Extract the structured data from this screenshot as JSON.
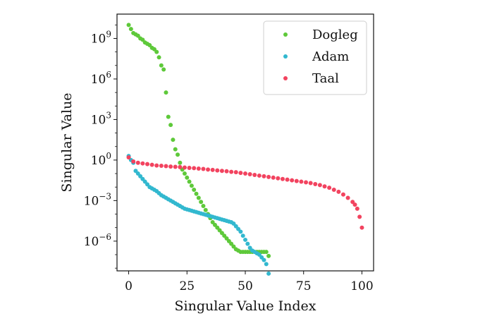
{
  "chart_data": {
    "type": "scatter",
    "xlabel": "Singular Value Index",
    "ylabel": "Singular Value",
    "xlim": [
      -5,
      105
    ],
    "ylim_log10": [
      -8.2,
      10.8
    ],
    "y_scale": "log",
    "x_ticks": [
      0,
      25,
      50,
      75,
      100
    ],
    "x_tick_labels": [
      "0",
      "25",
      "50",
      "75",
      "100"
    ],
    "y_ticks": [
      {
        "base": "10",
        "exp": "9",
        "value_log10": 9
      },
      {
        "base": "10",
        "exp": "6",
        "value_log10": 6
      },
      {
        "base": "10",
        "exp": "3",
        "value_log10": 3
      },
      {
        "base": "10",
        "exp": "0",
        "value_log10": 0
      },
      {
        "base": "10",
        "exp": "−3",
        "value_log10": -3
      },
      {
        "base": "10",
        "exp": "−6",
        "value_log10": -6
      }
    ],
    "legend_position": "top-right",
    "series": [
      {
        "name": "Dogleg",
        "color": "#5ec93a",
        "x": [
          0,
          1,
          2,
          3,
          4,
          5,
          6,
          7,
          8,
          9,
          10,
          11,
          12,
          13,
          14,
          15,
          16,
          17,
          18,
          19,
          20,
          21,
          22,
          23,
          24,
          25,
          26,
          27,
          28,
          29,
          30,
          31,
          32,
          33,
          34,
          35,
          36,
          37,
          38,
          39,
          40,
          41,
          42,
          43,
          44,
          45,
          46,
          47,
          48,
          49,
          50,
          51,
          52,
          53,
          54,
          55,
          56,
          57,
          58,
          59,
          60
        ],
        "log10_y": [
          10.0,
          9.7,
          9.4,
          9.3,
          9.2,
          9.0,
          8.9,
          8.7,
          8.6,
          8.5,
          8.3,
          8.2,
          8.0,
          7.6,
          7.0,
          6.7,
          5.0,
          3.2,
          2.6,
          1.5,
          0.8,
          0.4,
          -0.2,
          -0.7,
          -1.0,
          -1.3,
          -1.6,
          -1.9,
          -2.2,
          -2.5,
          -2.8,
          -3.1,
          -3.4,
          -3.7,
          -4.0,
          -4.3,
          -4.6,
          -4.8,
          -5.0,
          -5.2,
          -5.4,
          -5.6,
          -5.8,
          -6.0,
          -6.2,
          -6.4,
          -6.6,
          -6.7,
          -6.8,
          -6.8,
          -6.8,
          -6.8,
          -6.8,
          -6.8,
          -6.8,
          -6.8,
          -6.8,
          -6.8,
          -6.8,
          -6.8,
          -7.1
        ]
      },
      {
        "name": "Adam",
        "color": "#32b8cf",
        "x": [
          0,
          1,
          2,
          3,
          4,
          5,
          6,
          7,
          8,
          9,
          10,
          11,
          12,
          13,
          14,
          15,
          16,
          17,
          18,
          19,
          20,
          21,
          22,
          23,
          24,
          25,
          26,
          27,
          28,
          29,
          30,
          31,
          32,
          33,
          34,
          35,
          36,
          37,
          38,
          39,
          40,
          41,
          42,
          43,
          44,
          45,
          46,
          47,
          48,
          49,
          50,
          51,
          52,
          53,
          54,
          55,
          56,
          57,
          58,
          59,
          60
        ],
        "log10_y": [
          0.3,
          0.0,
          -0.2,
          -0.8,
          -1.0,
          -1.2,
          -1.4,
          -1.6,
          -1.8,
          -2.0,
          -2.1,
          -2.2,
          -2.3,
          -2.45,
          -2.6,
          -2.7,
          -2.8,
          -2.9,
          -3.0,
          -3.1,
          -3.2,
          -3.3,
          -3.4,
          -3.5,
          -3.6,
          -3.65,
          -3.7,
          -3.75,
          -3.8,
          -3.85,
          -3.9,
          -3.95,
          -4.0,
          -4.05,
          -4.1,
          -4.15,
          -4.2,
          -4.25,
          -4.3,
          -4.35,
          -4.4,
          -4.45,
          -4.5,
          -4.55,
          -4.6,
          -4.7,
          -4.9,
          -5.1,
          -5.3,
          -5.6,
          -5.9,
          -6.2,
          -6.5,
          -6.7,
          -6.8,
          -6.9,
          -7.0,
          -7.2,
          -7.4,
          -7.7,
          -8.4
        ]
      },
      {
        "name": "Taal",
        "color": "#f2435f",
        "x": [
          0,
          2,
          4,
          6,
          8,
          10,
          12,
          14,
          16,
          18,
          20,
          22,
          24,
          26,
          28,
          30,
          32,
          34,
          36,
          38,
          40,
          42,
          44,
          46,
          48,
          50,
          52,
          54,
          56,
          58,
          60,
          62,
          64,
          66,
          68,
          70,
          72,
          74,
          76,
          78,
          80,
          82,
          84,
          86,
          88,
          90,
          92,
          94,
          96,
          97,
          98,
          99,
          100
        ],
        "log10_y": [
          0.2,
          -0.1,
          -0.2,
          -0.25,
          -0.3,
          -0.35,
          -0.4,
          -0.42,
          -0.45,
          -0.48,
          -0.5,
          -0.52,
          -0.55,
          -0.58,
          -0.6,
          -0.63,
          -0.66,
          -0.7,
          -0.73,
          -0.77,
          -0.8,
          -0.83,
          -0.87,
          -0.9,
          -0.95,
          -1.0,
          -1.05,
          -1.1,
          -1.15,
          -1.2,
          -1.25,
          -1.3,
          -1.35,
          -1.4,
          -1.45,
          -1.5,
          -1.55,
          -1.6,
          -1.65,
          -1.7,
          -1.78,
          -1.85,
          -1.95,
          -2.05,
          -2.2,
          -2.35,
          -2.55,
          -2.8,
          -3.1,
          -3.3,
          -3.6,
          -4.2,
          -5.0
        ]
      }
    ]
  }
}
